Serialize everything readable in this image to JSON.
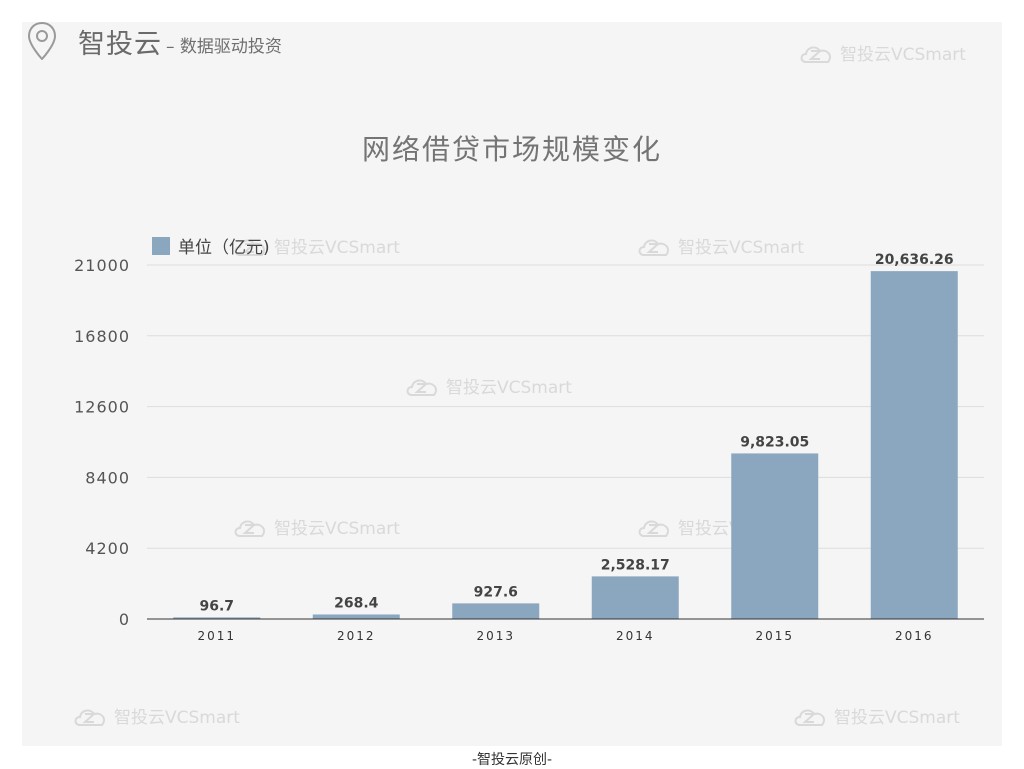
{
  "header": {
    "brand": "智投云",
    "slogan": "– 数据驱动投资"
  },
  "watermark_text": "智投云VCSmart",
  "footer": "-智投云原创-",
  "colors": {
    "bar": "#8ba7c0",
    "panel": "#f5f5f5",
    "grid": "#dddddd"
  },
  "chart_data": {
    "type": "bar",
    "title": "网络借贷市场规模变化",
    "categories": [
      "2011",
      "2012",
      "2013",
      "2014",
      "2015",
      "2016"
    ],
    "series": [
      {
        "name": "单位（亿元)",
        "values": [
          96.7,
          268.4,
          927.6,
          2528.17,
          9823.05,
          20636.26
        ]
      }
    ],
    "value_labels": [
      "96.7",
      "268.4",
      "927.6",
      "2,528.17",
      "9,823.05",
      "20,636.26"
    ],
    "yticks": [
      0,
      4200,
      8400,
      12600,
      16800,
      21000
    ],
    "ylim": [
      0,
      21000
    ],
    "grid": true,
    "legend_position": "top-left"
  }
}
